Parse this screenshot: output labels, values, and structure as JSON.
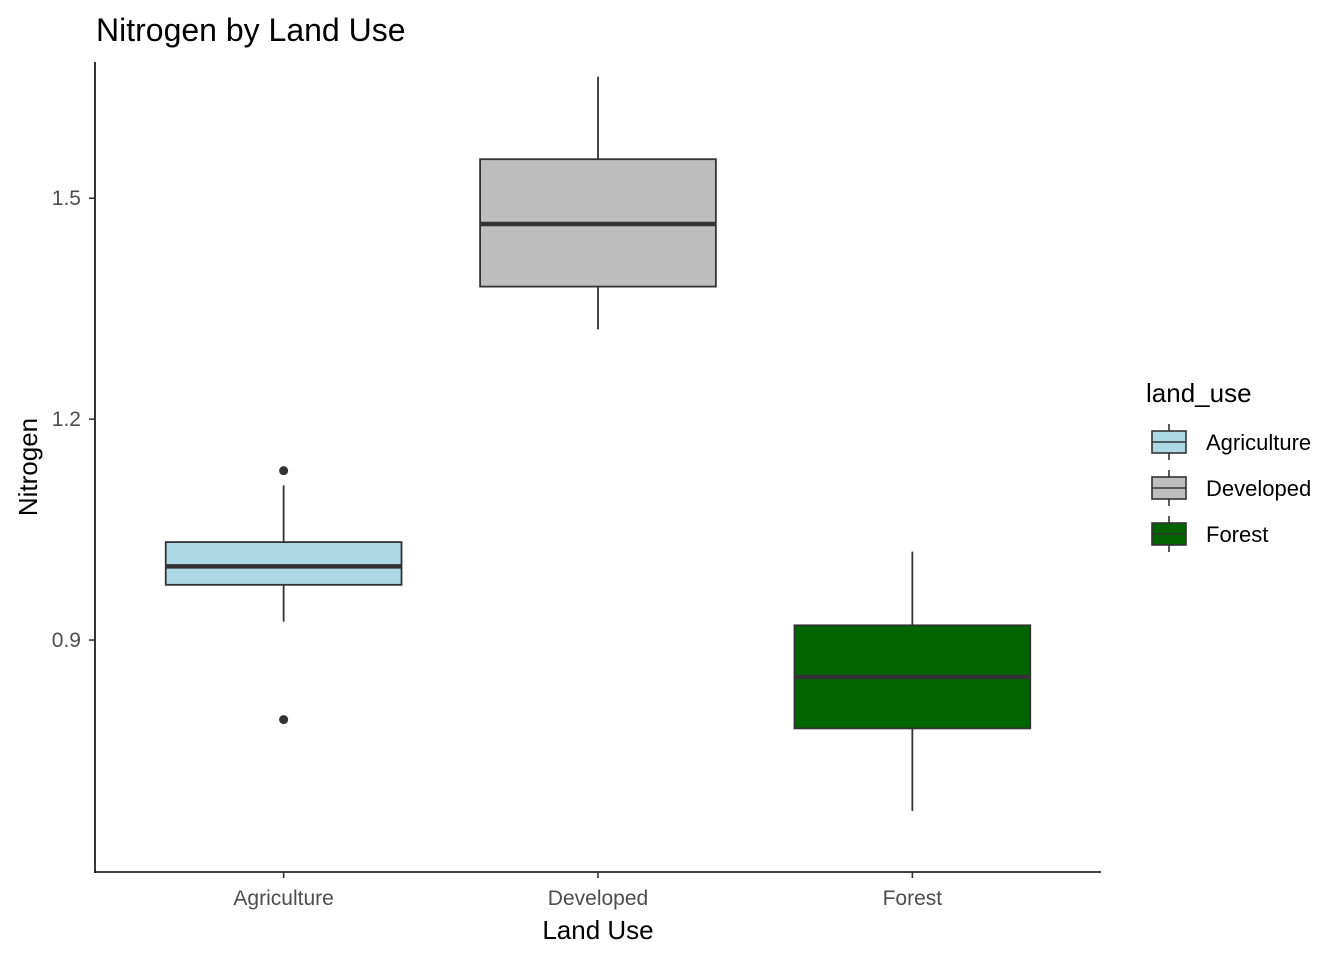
{
  "chart_data": {
    "type": "boxplot",
    "title": "Nitrogen by Land Use",
    "xlabel": "Land Use",
    "ylabel": "Nitrogen",
    "ylim": [
      0.585,
      1.685
    ],
    "yticks": [
      0.9,
      1.2,
      1.5
    ],
    "ytick_labels": [
      "0.9",
      "1.2",
      "1.5"
    ],
    "categories": [
      "Agriculture",
      "Developed",
      "Forest"
    ],
    "grid": false,
    "legend": {
      "title": "land_use",
      "placement": "right",
      "entries": [
        "Agriculture",
        "Developed",
        "Forest"
      ]
    },
    "boxes": [
      {
        "category": "Agriculture",
        "color": "#add8e6",
        "whisker_low": 0.925,
        "q1": 0.975,
        "median": 1.0,
        "q3": 1.033,
        "whisker_high": 1.11,
        "outliers": [
          1.13,
          0.792
        ]
      },
      {
        "category": "Developed",
        "color": "#bebebe",
        "whisker_low": 1.322,
        "q1": 1.38,
        "median": 1.465,
        "q3": 1.553,
        "whisker_high": 1.665,
        "outliers": []
      },
      {
        "category": "Forest",
        "color": "#006400",
        "whisker_low": 0.668,
        "q1": 0.78,
        "median": 0.85,
        "q3": 0.92,
        "whisker_high": 1.02,
        "outliers": []
      }
    ]
  }
}
